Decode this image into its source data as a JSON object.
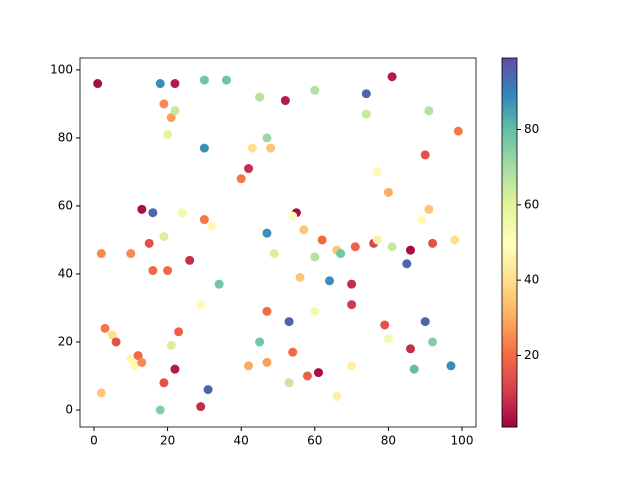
{
  "chart_data": {
    "type": "scatter",
    "colormap": "Spectral",
    "x": [
      1,
      18,
      22,
      30,
      36,
      19,
      21,
      22,
      20,
      45,
      60,
      52,
      74,
      81,
      74,
      91,
      99,
      30,
      47,
      43,
      48,
      90,
      42,
      40,
      77,
      80,
      13,
      16,
      24,
      30,
      32,
      55,
      54,
      57,
      47,
      62,
      91,
      89,
      19,
      15,
      2,
      10,
      16,
      20,
      26,
      49,
      60,
      66,
      67,
      71,
      76,
      77,
      81,
      86,
      85,
      92,
      98,
      56,
      64,
      34,
      70,
      70,
      29,
      47,
      60,
      53,
      3,
      5,
      6,
      23,
      21,
      45,
      79,
      80,
      90,
      92,
      86,
      10,
      12,
      11,
      13,
      22,
      54,
      42,
      47,
      58,
      61,
      70,
      87,
      97,
      2,
      19,
      18,
      29,
      31,
      53,
      66
    ],
    "y": [
      96,
      96,
      96,
      97,
      97,
      90,
      86,
      88,
      81,
      92,
      94,
      91,
      93,
      98,
      87,
      88,
      82,
      77,
      80,
      77,
      77,
      75,
      71,
      68,
      70,
      64,
      59,
      58,
      58,
      56,
      54,
      58,
      57,
      53,
      52,
      50,
      59,
      56,
      51,
      49,
      46,
      46,
      41,
      41,
      44,
      46,
      45,
      47,
      46,
      48,
      49,
      50,
      48,
      47,
      43,
      49,
      50,
      39,
      38,
      37,
      37,
      31,
      31,
      29,
      29,
      26,
      24,
      22,
      20,
      23,
      19,
      20,
      25,
      21,
      26,
      20,
      18,
      15,
      16,
      13,
      14,
      12,
      17,
      13,
      14,
      10,
      11,
      13,
      12,
      13,
      5,
      8,
      0,
      1,
      6,
      8,
      4
    ],
    "c": [
      3,
      88,
      5,
      78,
      78,
      25,
      28,
      65,
      60,
      68,
      68,
      5,
      95,
      5,
      65,
      68,
      22,
      88,
      72,
      40,
      35,
      15,
      8,
      22,
      48,
      30,
      3,
      95,
      55,
      22,
      48,
      3,
      50,
      35,
      88,
      20,
      35,
      48,
      62,
      15,
      25,
      25,
      20,
      20,
      8,
      62,
      68,
      35,
      78,
      18,
      12,
      45,
      65,
      3,
      95,
      15,
      40,
      35,
      88,
      78,
      8,
      10,
      48,
      20,
      55,
      95,
      22,
      40,
      15,
      18,
      62,
      78,
      15,
      55,
      95,
      75,
      8,
      48,
      20,
      48,
      25,
      5,
      20,
      30,
      28,
      18,
      3,
      45,
      80,
      88,
      35,
      15,
      75,
      8,
      95,
      65,
      45
    ],
    "xlim": [
      -3.8,
      103.8
    ],
    "ylim": [
      -5,
      103.5
    ],
    "xticks": [
      0,
      20,
      40,
      60,
      80,
      100
    ],
    "yticks": [
      0,
      20,
      40,
      60,
      80,
      100
    ],
    "clim": [
      1,
      99
    ],
    "cticks": [
      20,
      40,
      60,
      80
    ]
  }
}
